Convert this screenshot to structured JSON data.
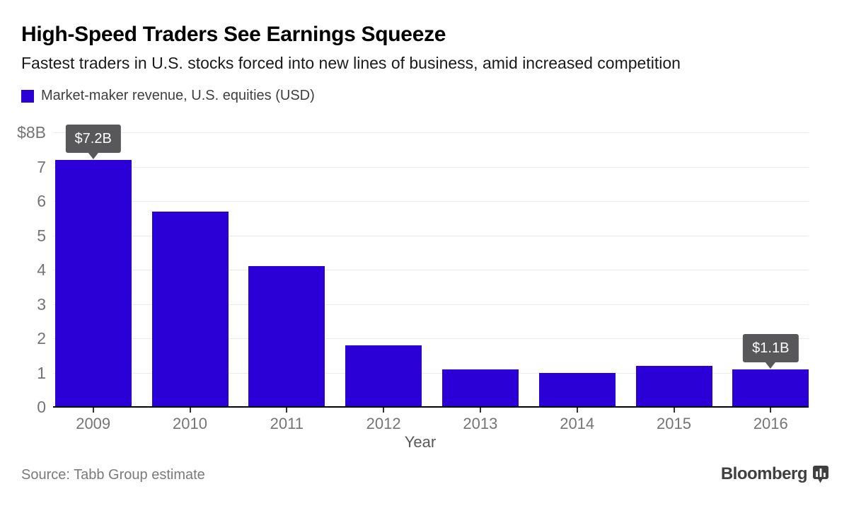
{
  "header": {
    "title": "High-Speed Traders See Earnings Squeeze",
    "subtitle": "Fastest traders in U.S. stocks forced into new lines of business, amid increased competition"
  },
  "legend": {
    "label": "Market-maker revenue, U.S. equities (USD)"
  },
  "chart_data": {
    "type": "bar",
    "title": "High-Speed Traders See Earnings Squeeze",
    "subtitle": "Fastest traders in U.S. stocks forced into new lines of business, amid increased competition",
    "legend_entries": [
      "Market-maker revenue, U.S. equities (USD)"
    ],
    "legend_position": "top-left",
    "categories": [
      "2009",
      "2010",
      "2011",
      "2012",
      "2013",
      "2014",
      "2015",
      "2016"
    ],
    "values": [
      7.2,
      5.7,
      4.1,
      1.8,
      1.1,
      1.0,
      1.2,
      1.1
    ],
    "xlabel": "Year",
    "ylabel": "",
    "ylim": [
      0,
      8
    ],
    "y_ticks": [
      0,
      1,
      2,
      3,
      4,
      5,
      6,
      7,
      8
    ],
    "y_top_tick_label": "$8B",
    "grid": true,
    "annotations": [
      {
        "category": "2009",
        "label": "$7.2B"
      },
      {
        "category": "2016",
        "label": "$1.1B"
      }
    ],
    "colors": {
      "bar": "#2a00d6",
      "tooltip_bg": "#58585a",
      "tooltip_text": "#ffffff",
      "gridline": "#ebebeb",
      "axis_line": "#000000",
      "tick_label": "#757575"
    }
  },
  "footer": {
    "source": "Source: Tabb Group estimate",
    "brand": "Bloomberg"
  }
}
